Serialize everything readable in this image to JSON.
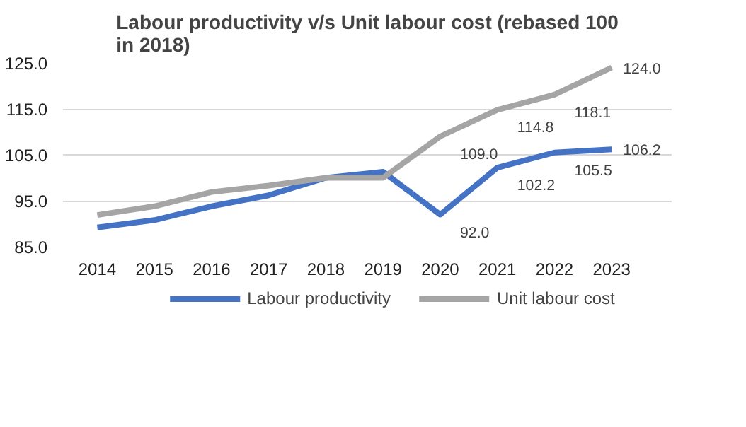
{
  "chart_data": {
    "type": "line",
    "title": "Labour productivity v/s Unit labour cost (rebased 100\nin 2018)",
    "categories": [
      "2014",
      "2015",
      "2016",
      "2017",
      "2018",
      "2019",
      "2020",
      "2021",
      "2022",
      "2023"
    ],
    "series": [
      {
        "name": "Labour productivity",
        "color": "#4472c4",
        "values": [
          89.2,
          90.8,
          93.8,
          96.2,
          100.0,
          101.3,
          92.0,
          102.2,
          105.5,
          106.2
        ],
        "value_labels": [
          null,
          null,
          null,
          null,
          null,
          null,
          "92.0",
          "102.2",
          "105.5",
          "106.2"
        ]
      },
      {
        "name": "Unit labour cost",
        "color": "#a5a5a5",
        "values": [
          91.9,
          93.8,
          96.9,
          98.3,
          100.0,
          100.0,
          109.0,
          114.8,
          118.1,
          124.0
        ],
        "value_labels": [
          null,
          null,
          null,
          null,
          null,
          null,
          "109.0",
          "114.8",
          "118.1",
          "124.0"
        ]
      }
    ],
    "ylim": [
      85,
      125
    ],
    "yticks": [
      {
        "value": 85,
        "label": "85.0"
      },
      {
        "value": 95,
        "label": "95.0"
      },
      {
        "value": 105,
        "label": "105.0"
      },
      {
        "value": 115,
        "label": "115.0"
      },
      {
        "value": 125,
        "label": "125.0"
      }
    ],
    "grid": "y",
    "legend": "bottom",
    "marker": "none",
    "line_style": "solid"
  }
}
